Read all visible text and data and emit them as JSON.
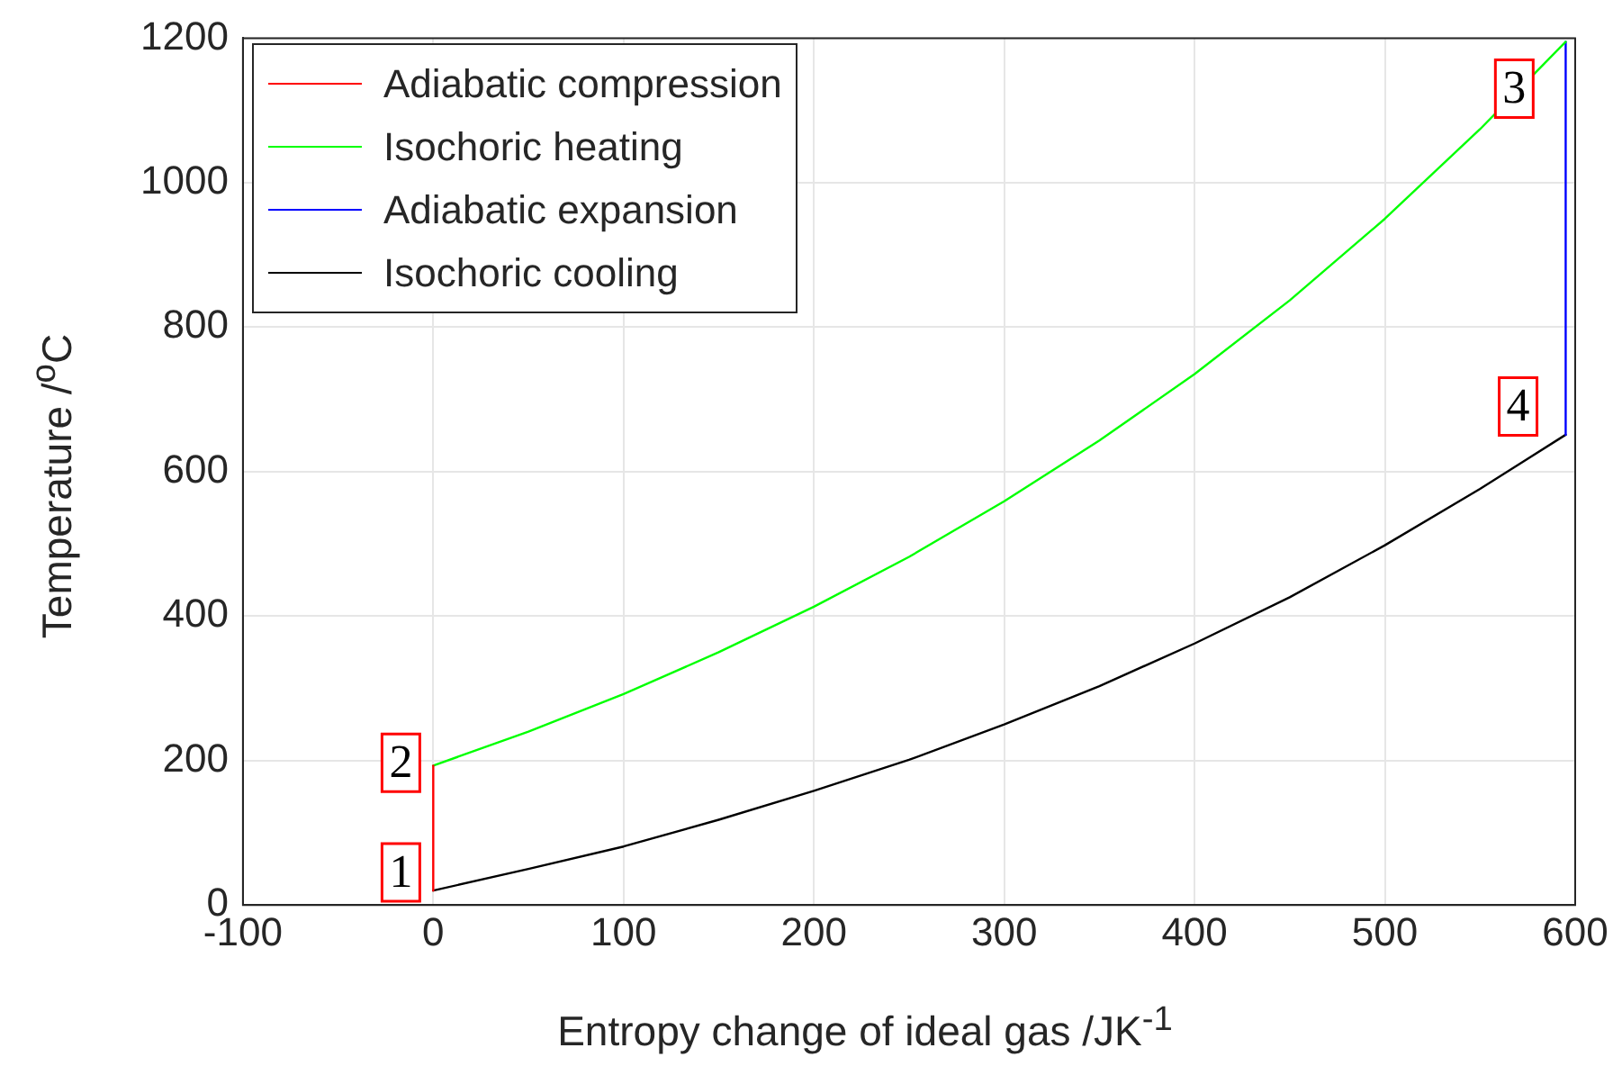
{
  "chart_data": {
    "type": "line",
    "xlabel": "Entropy change of ideal gas /JK$^{-1}$",
    "ylabel": "Temperature /$^{o}$C",
    "xlim": [
      -100,
      600
    ],
    "xticks": [
      -100,
      0,
      100,
      200,
      300,
      400,
      500,
      600
    ],
    "ylim": [
      0,
      1200
    ],
    "yticks": [
      0,
      200,
      400,
      600,
      800,
      1000,
      1200
    ],
    "grid": true,
    "legend": "top left",
    "marker": "none",
    "line_style": "solid",
    "series": [
      {
        "name": "Adiabatic compression",
        "color": "#ff0000",
        "x": [
          0,
          0
        ],
        "values": [
          20,
          193
        ]
      },
      {
        "name": "Isochoric heating",
        "color": "#00ff00",
        "x": [
          0,
          50,
          100,
          150,
          200,
          250,
          300,
          350,
          400,
          450,
          500,
          550,
          595
        ],
        "values": [
          193,
          240,
          292,
          350,
          413,
          482,
          559,
          643,
          735,
          837,
          950,
          1074,
          1195
        ]
      },
      {
        "name": "Adiabatic expansion",
        "color": "#0000ff",
        "x": [
          595,
          595
        ],
        "values": [
          1195,
          651
        ]
      },
      {
        "name": "Isochoric cooling",
        "color": "#000000",
        "x": [
          0,
          50,
          100,
          150,
          200,
          250,
          300,
          350,
          400,
          450,
          500,
          550,
          595
        ],
        "values": [
          20,
          50,
          81,
          118,
          158,
          201,
          250,
          303,
          362,
          426,
          498,
          576,
          651
        ]
      }
    ],
    "annotations": [
      {
        "text": "1",
        "x": -17,
        "y": 45
      },
      {
        "text": "2",
        "x": -17,
        "y": 197
      },
      {
        "text": "3",
        "x": 568,
        "y": 1130
      },
      {
        "text": "4",
        "x": 570,
        "y": 690
      }
    ]
  }
}
